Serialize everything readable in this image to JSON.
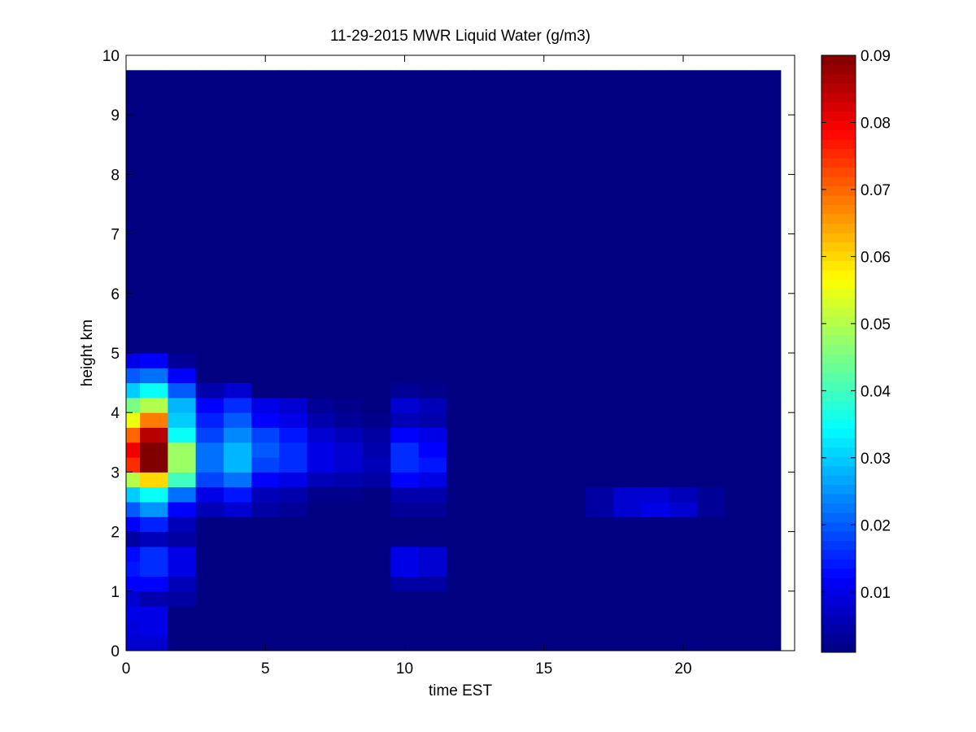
{
  "chart_data": {
    "type": "heatmap",
    "title": "11-29-2015 MWR Liquid Water (g/m3)",
    "xlabel": "time EST",
    "ylabel": "height km",
    "colormap": "jet",
    "xlim": [
      0,
      24
    ],
    "ylim": [
      0,
      10
    ],
    "xticks": [
      0,
      5,
      10,
      15,
      20
    ],
    "yticks": [
      0,
      1,
      2,
      3,
      4,
      5,
      6,
      7,
      8,
      9,
      10
    ],
    "clim": [
      0.001,
      0.09
    ],
    "cticks": [
      0.01,
      0.02,
      0.03,
      0.04,
      0.05,
      0.06,
      0.07,
      0.08,
      0.09
    ],
    "x_edges": [
      0,
      0.5,
      1.5,
      2.5,
      3.5,
      4.5,
      5.5,
      6.5,
      7.5,
      8.5,
      9.5,
      10.5,
      11.5,
      12.5,
      13.5,
      14.5,
      15.5,
      16.5,
      17.5,
      18.5,
      19.5,
      20.5,
      21.5,
      22.5,
      23.5
    ],
    "y_edges": [
      0,
      0.25,
      0.5,
      0.75,
      1,
      1.25,
      1.5,
      1.75,
      2,
      2.25,
      2.5,
      2.75,
      3,
      3.25,
      3.5,
      3.75,
      4,
      4.25,
      4.5,
      4.75,
      5,
      9.75
    ],
    "z": [
      [
        0.008,
        0.008,
        0.001,
        0.001,
        0.001,
        0.001,
        0.001,
        0.001,
        0.001,
        0.001,
        0.001,
        0.001,
        0.001,
        0.001,
        0.001,
        0.001,
        0.001,
        0.001,
        0.001,
        0.001,
        0.001,
        0.001,
        0.001,
        0.001
      ],
      [
        0.009,
        0.01,
        0.001,
        0.001,
        0.001,
        0.001,
        0.001,
        0.001,
        0.001,
        0.001,
        0.001,
        0.001,
        0.001,
        0.001,
        0.001,
        0.001,
        0.001,
        0.001,
        0.001,
        0.001,
        0.001,
        0.001,
        0.001,
        0.001
      ],
      [
        0.01,
        0.01,
        0.001,
        0.001,
        0.001,
        0.001,
        0.001,
        0.001,
        0.001,
        0.001,
        0.001,
        0.001,
        0.001,
        0.001,
        0.001,
        0.001,
        0.001,
        0.001,
        0.001,
        0.001,
        0.001,
        0.001,
        0.001,
        0.001
      ],
      [
        0.008,
        0.005,
        0.004,
        0.001,
        0.001,
        0.001,
        0.001,
        0.001,
        0.001,
        0.001,
        0.001,
        0.001,
        0.001,
        0.001,
        0.001,
        0.001,
        0.001,
        0.001,
        0.001,
        0.001,
        0.001,
        0.001,
        0.001,
        0.001
      ],
      [
        0.012,
        0.012,
        0.006,
        0.001,
        0.001,
        0.001,
        0.001,
        0.001,
        0.001,
        0.001,
        0.004,
        0.004,
        0.001,
        0.001,
        0.001,
        0.001,
        0.001,
        0.001,
        0.001,
        0.001,
        0.001,
        0.001,
        0.001,
        0.001
      ],
      [
        0.014,
        0.016,
        0.01,
        0.001,
        0.001,
        0.001,
        0.001,
        0.001,
        0.001,
        0.001,
        0.01,
        0.008,
        0.001,
        0.001,
        0.001,
        0.001,
        0.001,
        0.001,
        0.001,
        0.001,
        0.001,
        0.001,
        0.001,
        0.001
      ],
      [
        0.013,
        0.016,
        0.01,
        0.001,
        0.001,
        0.001,
        0.001,
        0.001,
        0.001,
        0.001,
        0.01,
        0.008,
        0.001,
        0.001,
        0.001,
        0.001,
        0.001,
        0.001,
        0.001,
        0.001,
        0.001,
        0.001,
        0.001,
        0.001
      ],
      [
        0.004,
        0.006,
        0.004,
        0.001,
        0.001,
        0.001,
        0.001,
        0.001,
        0.001,
        0.001,
        0.001,
        0.001,
        0.001,
        0.001,
        0.001,
        0.001,
        0.001,
        0.001,
        0.001,
        0.001,
        0.001,
        0.001,
        0.001,
        0.001
      ],
      [
        0.012,
        0.015,
        0.006,
        0.001,
        0.001,
        0.001,
        0.001,
        0.001,
        0.001,
        0.001,
        0.001,
        0.001,
        0.001,
        0.001,
        0.001,
        0.001,
        0.001,
        0.001,
        0.001,
        0.001,
        0.001,
        0.001,
        0.001,
        0.001
      ],
      [
        0.02,
        0.025,
        0.012,
        0.006,
        0.008,
        0.004,
        0.003,
        0.001,
        0.001,
        0.001,
        0.003,
        0.003,
        0.001,
        0.001,
        0.001,
        0.001,
        0.001,
        0.004,
        0.008,
        0.01,
        0.008,
        0.003,
        0.001,
        0.001
      ],
      [
        0.03,
        0.035,
        0.022,
        0.01,
        0.014,
        0.006,
        0.005,
        0.002,
        0.002,
        0.001,
        0.005,
        0.005,
        0.001,
        0.001,
        0.001,
        0.001,
        0.001,
        0.004,
        0.008,
        0.008,
        0.006,
        0.003,
        0.001,
        0.001
      ],
      [
        0.05,
        0.06,
        0.04,
        0.018,
        0.022,
        0.012,
        0.01,
        0.006,
        0.005,
        0.004,
        0.012,
        0.01,
        0.001,
        0.001,
        0.001,
        0.001,
        0.001,
        0.001,
        0.001,
        0.001,
        0.001,
        0.001,
        0.001,
        0.001
      ],
      [
        0.075,
        0.09,
        0.048,
        0.022,
        0.028,
        0.018,
        0.016,
        0.01,
        0.008,
        0.006,
        0.016,
        0.014,
        0.001,
        0.001,
        0.001,
        0.001,
        0.001,
        0.001,
        0.001,
        0.001,
        0.001,
        0.001,
        0.001,
        0.001
      ],
      [
        0.08,
        0.09,
        0.048,
        0.022,
        0.028,
        0.02,
        0.016,
        0.01,
        0.008,
        0.005,
        0.016,
        0.012,
        0.001,
        0.001,
        0.001,
        0.001,
        0.001,
        0.001,
        0.001,
        0.001,
        0.001,
        0.001,
        0.001,
        0.001
      ],
      [
        0.07,
        0.085,
        0.035,
        0.018,
        0.024,
        0.018,
        0.014,
        0.008,
        0.006,
        0.004,
        0.012,
        0.01,
        0.001,
        0.001,
        0.001,
        0.001,
        0.001,
        0.001,
        0.001,
        0.001,
        0.001,
        0.001,
        0.001,
        0.001
      ],
      [
        0.055,
        0.068,
        0.03,
        0.015,
        0.02,
        0.012,
        0.01,
        0.005,
        0.003,
        0.002,
        0.006,
        0.005,
        0.001,
        0.001,
        0.001,
        0.001,
        0.001,
        0.001,
        0.001,
        0.001,
        0.001,
        0.001,
        0.001,
        0.001
      ],
      [
        0.045,
        0.05,
        0.028,
        0.012,
        0.016,
        0.01,
        0.008,
        0.003,
        0.002,
        0.001,
        0.008,
        0.006,
        0.001,
        0.001,
        0.001,
        0.001,
        0.001,
        0.001,
        0.001,
        0.001,
        0.001,
        0.001,
        0.001,
        0.001
      ],
      [
        0.03,
        0.035,
        0.02,
        0.005,
        0.008,
        0.001,
        0.001,
        0.001,
        0.001,
        0.001,
        0.003,
        0.002,
        0.001,
        0.001,
        0.001,
        0.001,
        0.001,
        0.001,
        0.001,
        0.001,
        0.001,
        0.001,
        0.001,
        0.001
      ],
      [
        0.02,
        0.022,
        0.012,
        0.001,
        0.001,
        0.001,
        0.001,
        0.001,
        0.001,
        0.001,
        0.001,
        0.001,
        0.001,
        0.001,
        0.001,
        0.001,
        0.001,
        0.001,
        0.001,
        0.001,
        0.001,
        0.001,
        0.001,
        0.001
      ],
      [
        0.01,
        0.012,
        0.003,
        0.001,
        0.001,
        0.001,
        0.001,
        0.001,
        0.001,
        0.001,
        0.001,
        0.001,
        0.001,
        0.001,
        0.001,
        0.001,
        0.001,
        0.001,
        0.001,
        0.001,
        0.001,
        0.001,
        0.001,
        0.001
      ],
      [
        0.001,
        0.001,
        0.001,
        0.001,
        0.001,
        0.001,
        0.001,
        0.001,
        0.001,
        0.001,
        0.001,
        0.001,
        0.001,
        0.001,
        0.001,
        0.001,
        0.001,
        0.001,
        0.001,
        0.001,
        0.001,
        0.001,
        0.001,
        0.001
      ]
    ]
  }
}
